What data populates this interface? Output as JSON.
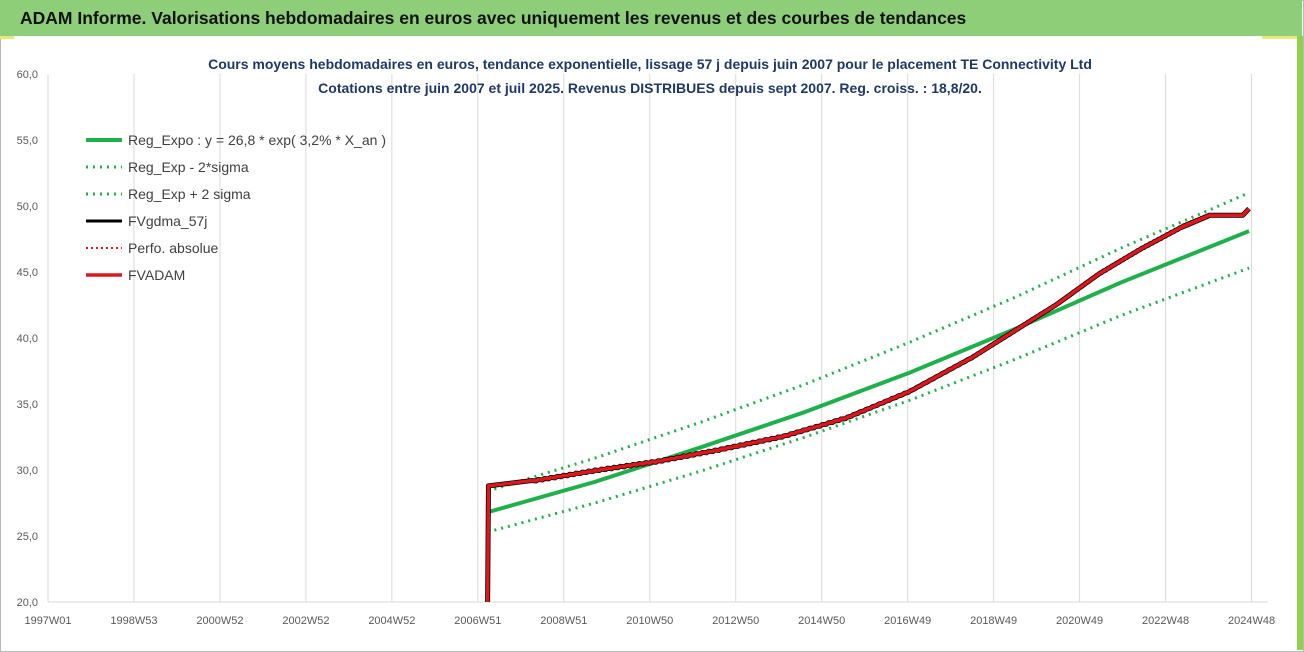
{
  "header": {
    "title": "ADAM Informe. Valorisations hebdomadaires en euros avec uniquement les revenus et des courbes de tendances"
  },
  "colors": {
    "header_bg": "#8fce79",
    "trend": "#1fb04c",
    "band": "#1fb04c",
    "fvgdma": "#000000",
    "perfo": "#e0161d",
    "fvadam": "#e0161d",
    "title_text": "#1f3864"
  },
  "chart_data": {
    "type": "line",
    "title": "Cours moyens hebdomadaires en euros, tendance exponentielle, lissage 57 j depuis juin 2007 pour le placement TE Connectivity Ltd",
    "subtitle": "Cotations entre juin 2007 et juil 2025.  Revenus DISTRIBUES depuis sept 2007. Reg. croiss. : 18,8/20.",
    "x_ticks": [
      "1997W01",
      "1998W53",
      "2000W52",
      "2002W52",
      "2004W52",
      "2006W51",
      "2008W51",
      "2010W50",
      "2012W50",
      "2014W50",
      "2016W49",
      "2018W49",
      "2020W49",
      "2022W48",
      "2024W48"
    ],
    "y_ticks": [
      "20,0",
      "25,0",
      "30,0",
      "35,0",
      "40,0",
      "45,0",
      "50,0",
      "55,0",
      "60,0"
    ],
    "ylim": [
      20,
      60
    ],
    "xlim": [
      1997.0,
      2026.0
    ],
    "grid": {
      "vertical": true,
      "horizontal": false
    },
    "legend_position": "top-left",
    "legend": [
      {
        "label": "Reg_Expo : y = 26,8 * exp( 3,2% *  X_an )",
        "style": "solid-green"
      },
      {
        "label": "Reg_Exp - 2*sigma",
        "style": "dotted-green"
      },
      {
        "label": "Reg_Exp + 2 sigma",
        "style": "dotted-green"
      },
      {
        "label": "FVgdma_57j",
        "style": "solid-black"
      },
      {
        "label": "Perfo. absolue",
        "style": "dotted-red"
      },
      {
        "label": "FVADAM",
        "style": "solid-red"
      }
    ],
    "series": [
      {
        "name": "Reg_Expo : y = 26,8 * exp( 3,2% *  X_an )",
        "x": [
          2007.45,
          2010.0,
          2012.5,
          2015.0,
          2017.5,
          2020.0,
          2022.5,
          2025.55
        ],
        "y": [
          26.8,
          29.1,
          31.7,
          34.4,
          37.4,
          40.7,
          44.2,
          48.1
        ]
      },
      {
        "name": "Reg_Exp - 2*sigma",
        "x": [
          2007.45,
          2010.0,
          2012.5,
          2015.0,
          2017.5,
          2020.0,
          2022.5,
          2025.55
        ],
        "y": [
          25.3,
          27.5,
          29.9,
          32.5,
          35.3,
          38.4,
          41.7,
          45.3
        ]
      },
      {
        "name": "Reg_Exp + 2 sigma",
        "x": [
          2007.45,
          2010.0,
          2012.5,
          2015.0,
          2017.5,
          2020.0,
          2022.5,
          2025.55
        ],
        "y": [
          28.4,
          30.9,
          33.6,
          36.5,
          39.7,
          43.1,
          46.8,
          51.0
        ]
      },
      {
        "name": "FVADAM",
        "x": [
          2007.45,
          2007.47,
          2008.5,
          2010.0,
          2011.5,
          2013.0,
          2014.5,
          2016.0,
          2017.5,
          2019.0,
          2020.0,
          2021.0,
          2022.0,
          2023.0,
          2024.0,
          2024.6,
          2025.4,
          2025.55
        ],
        "y": [
          20.0,
          28.8,
          29.2,
          30.0,
          30.7,
          31.6,
          32.6,
          34.0,
          36.0,
          38.6,
          40.6,
          42.6,
          44.9,
          46.8,
          48.5,
          49.3,
          49.3,
          49.8
        ]
      }
    ]
  }
}
